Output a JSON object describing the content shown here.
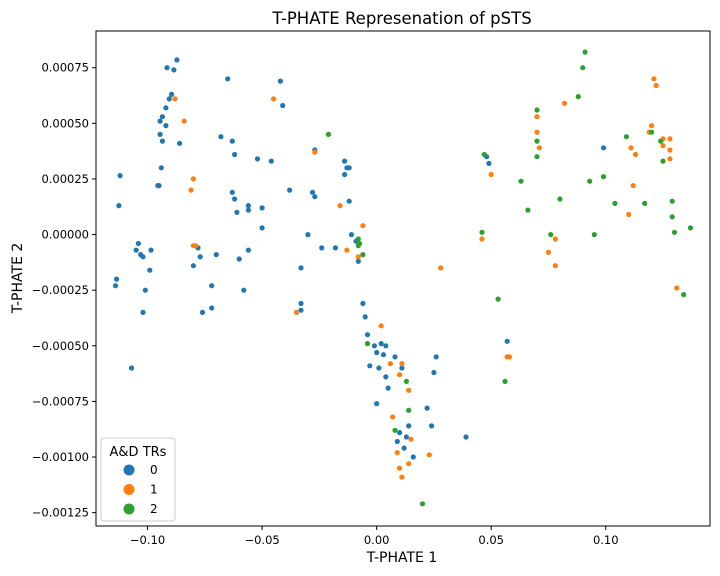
{
  "chart_data": {
    "type": "scatter",
    "title": "T-PHATE Represenation of pSTS",
    "xlabel": "T-PHATE 1",
    "ylabel": "T-PHATE 2",
    "xlim": [
      -0.1225,
      0.1455
    ],
    "ylim": [
      -0.00131,
      0.000915
    ],
    "xticks": [
      {
        "value": -0.1,
        "label": "−0.10"
      },
      {
        "value": -0.05,
        "label": "−0.05"
      },
      {
        "value": 0.0,
        "label": "0.00"
      },
      {
        "value": 0.05,
        "label": "0.05"
      },
      {
        "value": 0.1,
        "label": "0.10"
      }
    ],
    "yticks": [
      {
        "value": 0.00075,
        "label": "0.00075"
      },
      {
        "value": 0.0005,
        "label": "0.00050"
      },
      {
        "value": 0.00025,
        "label": "0.00025"
      },
      {
        "value": 0.0,
        "label": "0.00000"
      },
      {
        "value": -0.00025,
        "label": "−0.00025"
      },
      {
        "value": -0.0005,
        "label": "−0.00050"
      },
      {
        "value": -0.00075,
        "label": "−0.00075"
      },
      {
        "value": -0.001,
        "label": "−0.00100"
      },
      {
        "value": -0.00125,
        "label": "−0.00125"
      }
    ],
    "grid": false,
    "legend": {
      "title": "A&D TRs",
      "placement": "bottom-left"
    },
    "series": [
      {
        "name": "0",
        "color": "#1f77b4",
        "points": [
          [
            -0.0872,
            0.000785
          ],
          [
            -0.0915,
            0.00075
          ],
          [
            -0.0885,
            0.00074
          ],
          [
            -0.0895,
            0.00063
          ],
          [
            -0.0905,
            0.00061
          ],
          [
            -0.092,
            0.00057
          ],
          [
            -0.0935,
            0.00053
          ],
          [
            -0.0945,
            0.00051
          ],
          [
            -0.092,
            0.00049
          ],
          [
            -0.0945,
            0.00045
          ],
          [
            -0.0935,
            0.00042
          ],
          [
            -0.086,
            0.00041
          ],
          [
            -0.094,
            0.0003
          ],
          [
            -0.0955,
            0.00022
          ],
          [
            -0.095,
            0.00022
          ],
          [
            -0.112,
            0.000265
          ],
          [
            -0.1125,
            0.00013
          ],
          [
            -0.104,
            -4e-05
          ],
          [
            -0.105,
            -7e-05
          ],
          [
            -0.103,
            -9e-05
          ],
          [
            -0.102,
            -0.0001
          ],
          [
            -0.0985,
            -7e-05
          ],
          [
            -0.101,
            -0.00025
          ],
          [
            -0.099,
            -0.00016
          ],
          [
            -0.102,
            -0.00035
          ],
          [
            -0.1135,
            -0.0002
          ],
          [
            -0.114,
            -0.00023
          ],
          [
            -0.107,
            -0.0006
          ],
          [
            -0.065,
            0.0007
          ],
          [
            -0.042,
            0.00069
          ],
          [
            -0.041,
            0.00058
          ],
          [
            -0.068,
            0.00044
          ],
          [
            -0.063,
            0.00042
          ],
          [
            -0.062,
            0.00036
          ],
          [
            -0.052,
            0.00034
          ],
          [
            -0.046,
            0.00033
          ],
          [
            -0.063,
            0.00019
          ],
          [
            -0.062,
            0.00016
          ],
          [
            -0.038,
            0.0002
          ],
          [
            -0.027,
            0.00038
          ],
          [
            -0.028,
            0.00019
          ],
          [
            -0.027,
            0.00017
          ],
          [
            -0.056,
            0.00013
          ],
          [
            -0.05,
            0.00012
          ],
          [
            -0.056,
            0.00011
          ],
          [
            -0.05,
            3e-05
          ],
          [
            -0.061,
            0.0001
          ],
          [
            -0.07,
            -9e-05
          ],
          [
            -0.056,
            -7e-05
          ],
          [
            -0.078,
            -6e-05
          ],
          [
            -0.077,
            -0.0001
          ],
          [
            -0.06,
            -0.00011
          ],
          [
            -0.08,
            -0.00014
          ],
          [
            -0.072,
            -0.00023
          ],
          [
            -0.058,
            -0.00025
          ],
          [
            -0.076,
            -0.00035
          ],
          [
            -0.072,
            -0.00033
          ],
          [
            -0.03,
            0.0
          ],
          [
            -0.024,
            -6e-05
          ],
          [
            -0.018,
            -6e-05
          ],
          [
            -0.033,
            -0.00015
          ],
          [
            -0.033,
            -0.00031
          ],
          [
            -0.033,
            -0.00034
          ],
          [
            -0.014,
            0.00033
          ],
          [
            -0.013,
            0.0003
          ],
          [
            -0.012,
            0.0003
          ],
          [
            -0.014,
            0.00027
          ],
          [
            -0.012,
            0.00015
          ],
          [
            -0.011,
            0.0
          ],
          [
            -0.009,
            -3e-05
          ],
          [
            -0.008,
            -0.00012
          ],
          [
            -0.006,
            -0.00031
          ],
          [
            -0.005,
            -0.00037
          ],
          [
            -0.004,
            -0.00045
          ],
          [
            -0.001,
            -0.0005
          ],
          [
            0.002,
            -0.00049
          ],
          [
            0.004,
            -0.0005
          ],
          [
            0.0,
            -0.00053
          ],
          [
            -0.003,
            -0.00059
          ],
          [
            0.001,
            -0.0006
          ],
          [
            0.004,
            -0.00064
          ],
          [
            0.005,
            -0.00069
          ],
          [
            0.0,
            -0.00076
          ],
          [
            0.003,
            -0.00054
          ],
          [
            0.008,
            -0.00055
          ],
          [
            0.011,
            -0.0006
          ],
          [
            0.013,
            -0.00091
          ],
          [
            0.014,
            -0.00086
          ],
          [
            0.01,
            -0.00089
          ],
          [
            0.009,
            -0.00093
          ],
          [
            0.012,
            -0.00096
          ],
          [
            0.016,
            -0.001
          ],
          [
            0.022,
            -0.00078
          ],
          [
            0.024,
            -0.00086
          ],
          [
            0.026,
            -0.00055
          ],
          [
            0.025,
            -0.00062
          ],
          [
            0.039,
            -0.00091
          ],
          [
            0.048,
            0.00035
          ],
          [
            0.049,
            0.00032
          ],
          [
            0.057,
            -0.00048
          ],
          [
            0.099,
            0.00039
          ]
        ]
      },
      {
        "name": "1",
        "color": "#ff7f0e",
        "points": [
          [
            -0.088,
            0.00061
          ],
          [
            -0.084,
            0.00051
          ],
          [
            -0.08,
            0.00025
          ],
          [
            -0.081,
            0.0002
          ],
          [
            -0.079,
            -5e-05
          ],
          [
            -0.08,
            -5e-05
          ],
          [
            -0.045,
            0.00061
          ],
          [
            -0.027,
            0.00037
          ],
          [
            -0.016,
            0.00013
          ],
          [
            -0.013,
            -7e-05
          ],
          [
            -0.006,
            4e-05
          ],
          [
            -0.008,
            -0.0001
          ],
          [
            -0.035,
            -0.00035
          ],
          [
            0.002,
            -0.00041
          ],
          [
            0.006,
            -0.00058
          ],
          [
            0.011,
            -0.00058
          ],
          [
            0.01,
            -0.00063
          ],
          [
            0.014,
            -0.0007
          ],
          [
            0.007,
            -0.00082
          ],
          [
            0.015,
            -0.00092
          ],
          [
            0.009,
            -0.00098
          ],
          [
            0.01,
            -0.00105
          ],
          [
            0.011,
            -0.00109
          ],
          [
            0.014,
            -0.00103
          ],
          [
            0.023,
            -0.00099
          ],
          [
            0.028,
            -0.00015
          ],
          [
            0.046,
            -2e-05
          ],
          [
            0.05,
            0.00027
          ],
          [
            0.07,
            0.00053
          ],
          [
            0.07,
            0.00046
          ],
          [
            0.071,
            0.00039
          ],
          [
            0.082,
            0.00059
          ],
          [
            0.075,
            -8e-05
          ],
          [
            0.078,
            -2e-05
          ],
          [
            0.078,
            -0.00014
          ],
          [
            0.057,
            -0.00055
          ],
          [
            0.058,
            -0.00055
          ],
          [
            0.121,
            0.0007
          ],
          [
            0.122,
            0.00067
          ],
          [
            0.12,
            0.00049
          ],
          [
            0.119,
            0.00046
          ],
          [
            0.125,
            0.00043
          ],
          [
            0.128,
            0.00043
          ],
          [
            0.125,
            0.0004
          ],
          [
            0.128,
            0.00038
          ],
          [
            0.128,
            0.00034
          ],
          [
            0.113,
            0.00036
          ],
          [
            0.111,
            0.00039
          ],
          [
            0.112,
            0.00022
          ],
          [
            0.11,
            9e-05
          ],
          [
            0.131,
            -0.00024
          ]
        ]
      },
      {
        "name": "2",
        "color": "#2ca02c",
        "points": [
          [
            -0.021,
            0.00045
          ],
          [
            -0.008,
            -2e-05
          ],
          [
            -0.0075,
            -4e-05
          ],
          [
            -0.008,
            -5e-05
          ],
          [
            -0.006,
            -9e-05
          ],
          [
            -0.004,
            -0.00049
          ],
          [
            0.013,
            -0.00066
          ],
          [
            0.014,
            -0.00079
          ],
          [
            0.008,
            -0.00088
          ],
          [
            0.02,
            -0.00121
          ],
          [
            0.046,
            1e-05
          ],
          [
            0.047,
            0.00036
          ],
          [
            0.053,
            -0.00029
          ],
          [
            0.056,
            -0.00066
          ],
          [
            0.063,
            0.00024
          ],
          [
            0.066,
            0.00011
          ],
          [
            0.07,
            0.00056
          ],
          [
            0.07,
            0.00042
          ],
          [
            0.07,
            0.00035
          ],
          [
            0.076,
            0.0
          ],
          [
            0.08,
            0.00016
          ],
          [
            0.088,
            0.00062
          ],
          [
            0.09,
            0.00075
          ],
          [
            0.091,
            0.00082
          ],
          [
            0.093,
            0.00024
          ],
          [
            0.095,
            0.0
          ],
          [
            0.099,
            0.00026
          ],
          [
            0.104,
            0.00014
          ],
          [
            0.109,
            0.00044
          ],
          [
            0.117,
            0.00014
          ],
          [
            0.12,
            0.00046
          ],
          [
            0.124,
            0.00042
          ],
          [
            0.125,
            0.00033
          ],
          [
            0.129,
            0.00015
          ],
          [
            0.129,
            8e-05
          ],
          [
            0.13,
            1e-05
          ],
          [
            0.134,
            -0.00027
          ],
          [
            0.137,
            3e-05
          ]
        ]
      }
    ]
  }
}
